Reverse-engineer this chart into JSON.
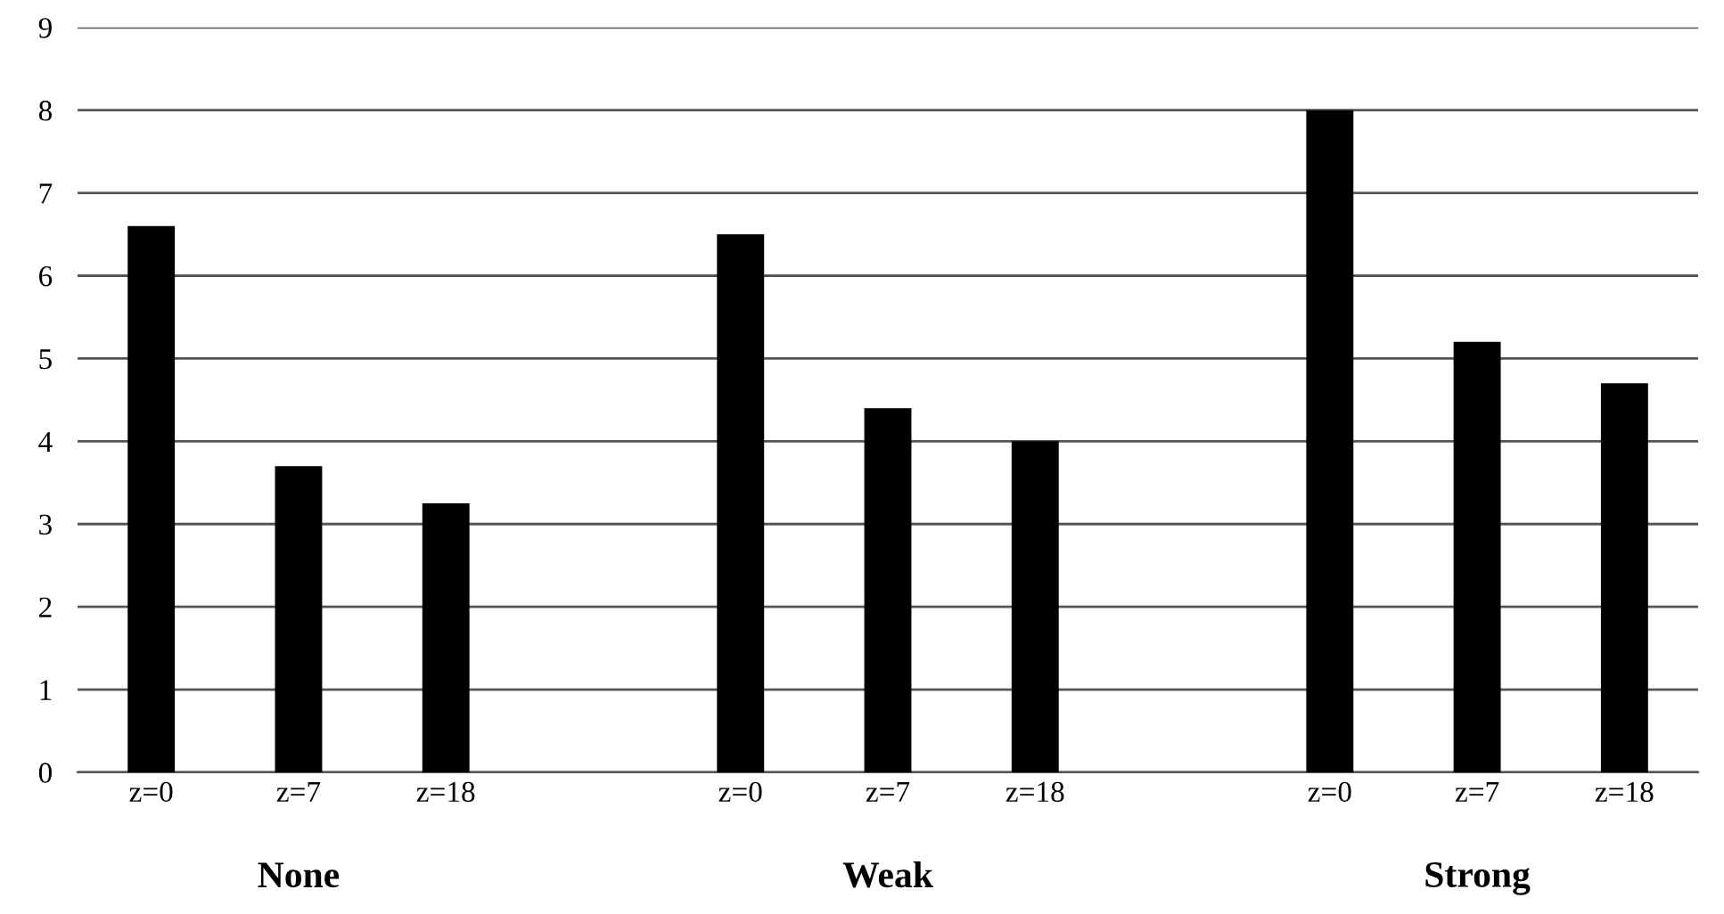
{
  "chart_data": {
    "type": "bar",
    "categories": [
      "z=0",
      "z=7",
      "z=18",
      null,
      "z=0",
      "z=7",
      "z=18",
      null,
      "z=0",
      "z=7",
      "z=18"
    ],
    "values": [
      6.6,
      3.7,
      3.25,
      null,
      6.5,
      4.4,
      4.0,
      null,
      8.0,
      5.2,
      4.7
    ],
    "color": "#000000",
    "ylim": [
      0,
      9
    ],
    "yticks": [
      0,
      1,
      2,
      3,
      4,
      5,
      6,
      7,
      8,
      9
    ],
    "grid": "y",
    "annotations": [
      "None",
      "Weak",
      "Strong"
    ]
  }
}
